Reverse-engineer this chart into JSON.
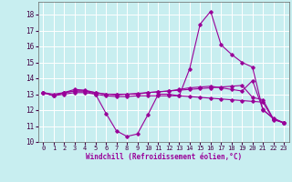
{
  "xlabel": "Windchill (Refroidissement éolien,°C)",
  "xlim": [
    -0.5,
    23.5
  ],
  "ylim": [
    10,
    18.8
  ],
  "yticks": [
    10,
    11,
    12,
    13,
    14,
    15,
    16,
    17,
    18
  ],
  "xticks": [
    0,
    1,
    2,
    3,
    4,
    5,
    6,
    7,
    8,
    9,
    10,
    11,
    12,
    13,
    14,
    15,
    16,
    17,
    18,
    19,
    20,
    21,
    22,
    23
  ],
  "bg_color": "#c8eef0",
  "grid_color": "#ffffff",
  "line_color": "#990099",
  "lines": [
    {
      "x": [
        0,
        1,
        2,
        3,
        4,
        5,
        6,
        7,
        8,
        9,
        10,
        11,
        12,
        13,
        14,
        15,
        16,
        17,
        18,
        19,
        20,
        21,
        22,
        23
      ],
      "y": [
        13.1,
        12.9,
        13.1,
        13.2,
        13.2,
        13.0,
        11.8,
        10.7,
        10.35,
        10.5,
        11.7,
        13.0,
        13.0,
        12.9,
        14.6,
        17.4,
        18.2,
        16.1,
        15.5,
        15.0,
        14.7,
        12.0,
        11.5,
        11.2
      ]
    },
    {
      "x": [
        0,
        1,
        2,
        3,
        4,
        5,
        6,
        7,
        8,
        9,
        10,
        11,
        12,
        13,
        14,
        15,
        16,
        17,
        18,
        19,
        20,
        21,
        22,
        23
      ],
      "y": [
        13.1,
        12.9,
        13.1,
        13.3,
        13.25,
        13.1,
        13.0,
        12.95,
        13.0,
        13.05,
        13.1,
        13.15,
        13.2,
        13.3,
        13.4,
        13.45,
        13.5,
        13.4,
        13.3,
        13.2,
        13.85,
        12.05,
        11.45,
        11.2
      ]
    },
    {
      "x": [
        0,
        1,
        2,
        3,
        4,
        5,
        6,
        7,
        8,
        9,
        10,
        11,
        12,
        13,
        14,
        15,
        16,
        17,
        18,
        19,
        20,
        21,
        22,
        23
      ],
      "y": [
        13.1,
        13.0,
        13.1,
        13.2,
        13.2,
        13.1,
        13.0,
        13.0,
        13.0,
        13.0,
        13.1,
        13.15,
        13.2,
        13.25,
        13.3,
        13.35,
        13.4,
        13.45,
        13.5,
        13.55,
        12.8,
        12.65,
        11.45,
        11.2
      ]
    },
    {
      "x": [
        0,
        1,
        2,
        3,
        4,
        5,
        6,
        7,
        8,
        9,
        10,
        11,
        12,
        13,
        14,
        15,
        16,
        17,
        18,
        19,
        20,
        21,
        22,
        23
      ],
      "y": [
        13.1,
        12.9,
        13.0,
        13.1,
        13.1,
        13.0,
        12.9,
        12.85,
        12.85,
        12.9,
        12.9,
        12.9,
        12.9,
        12.9,
        12.85,
        12.8,
        12.75,
        12.7,
        12.65,
        12.6,
        12.55,
        12.5,
        11.4,
        11.2
      ]
    }
  ]
}
